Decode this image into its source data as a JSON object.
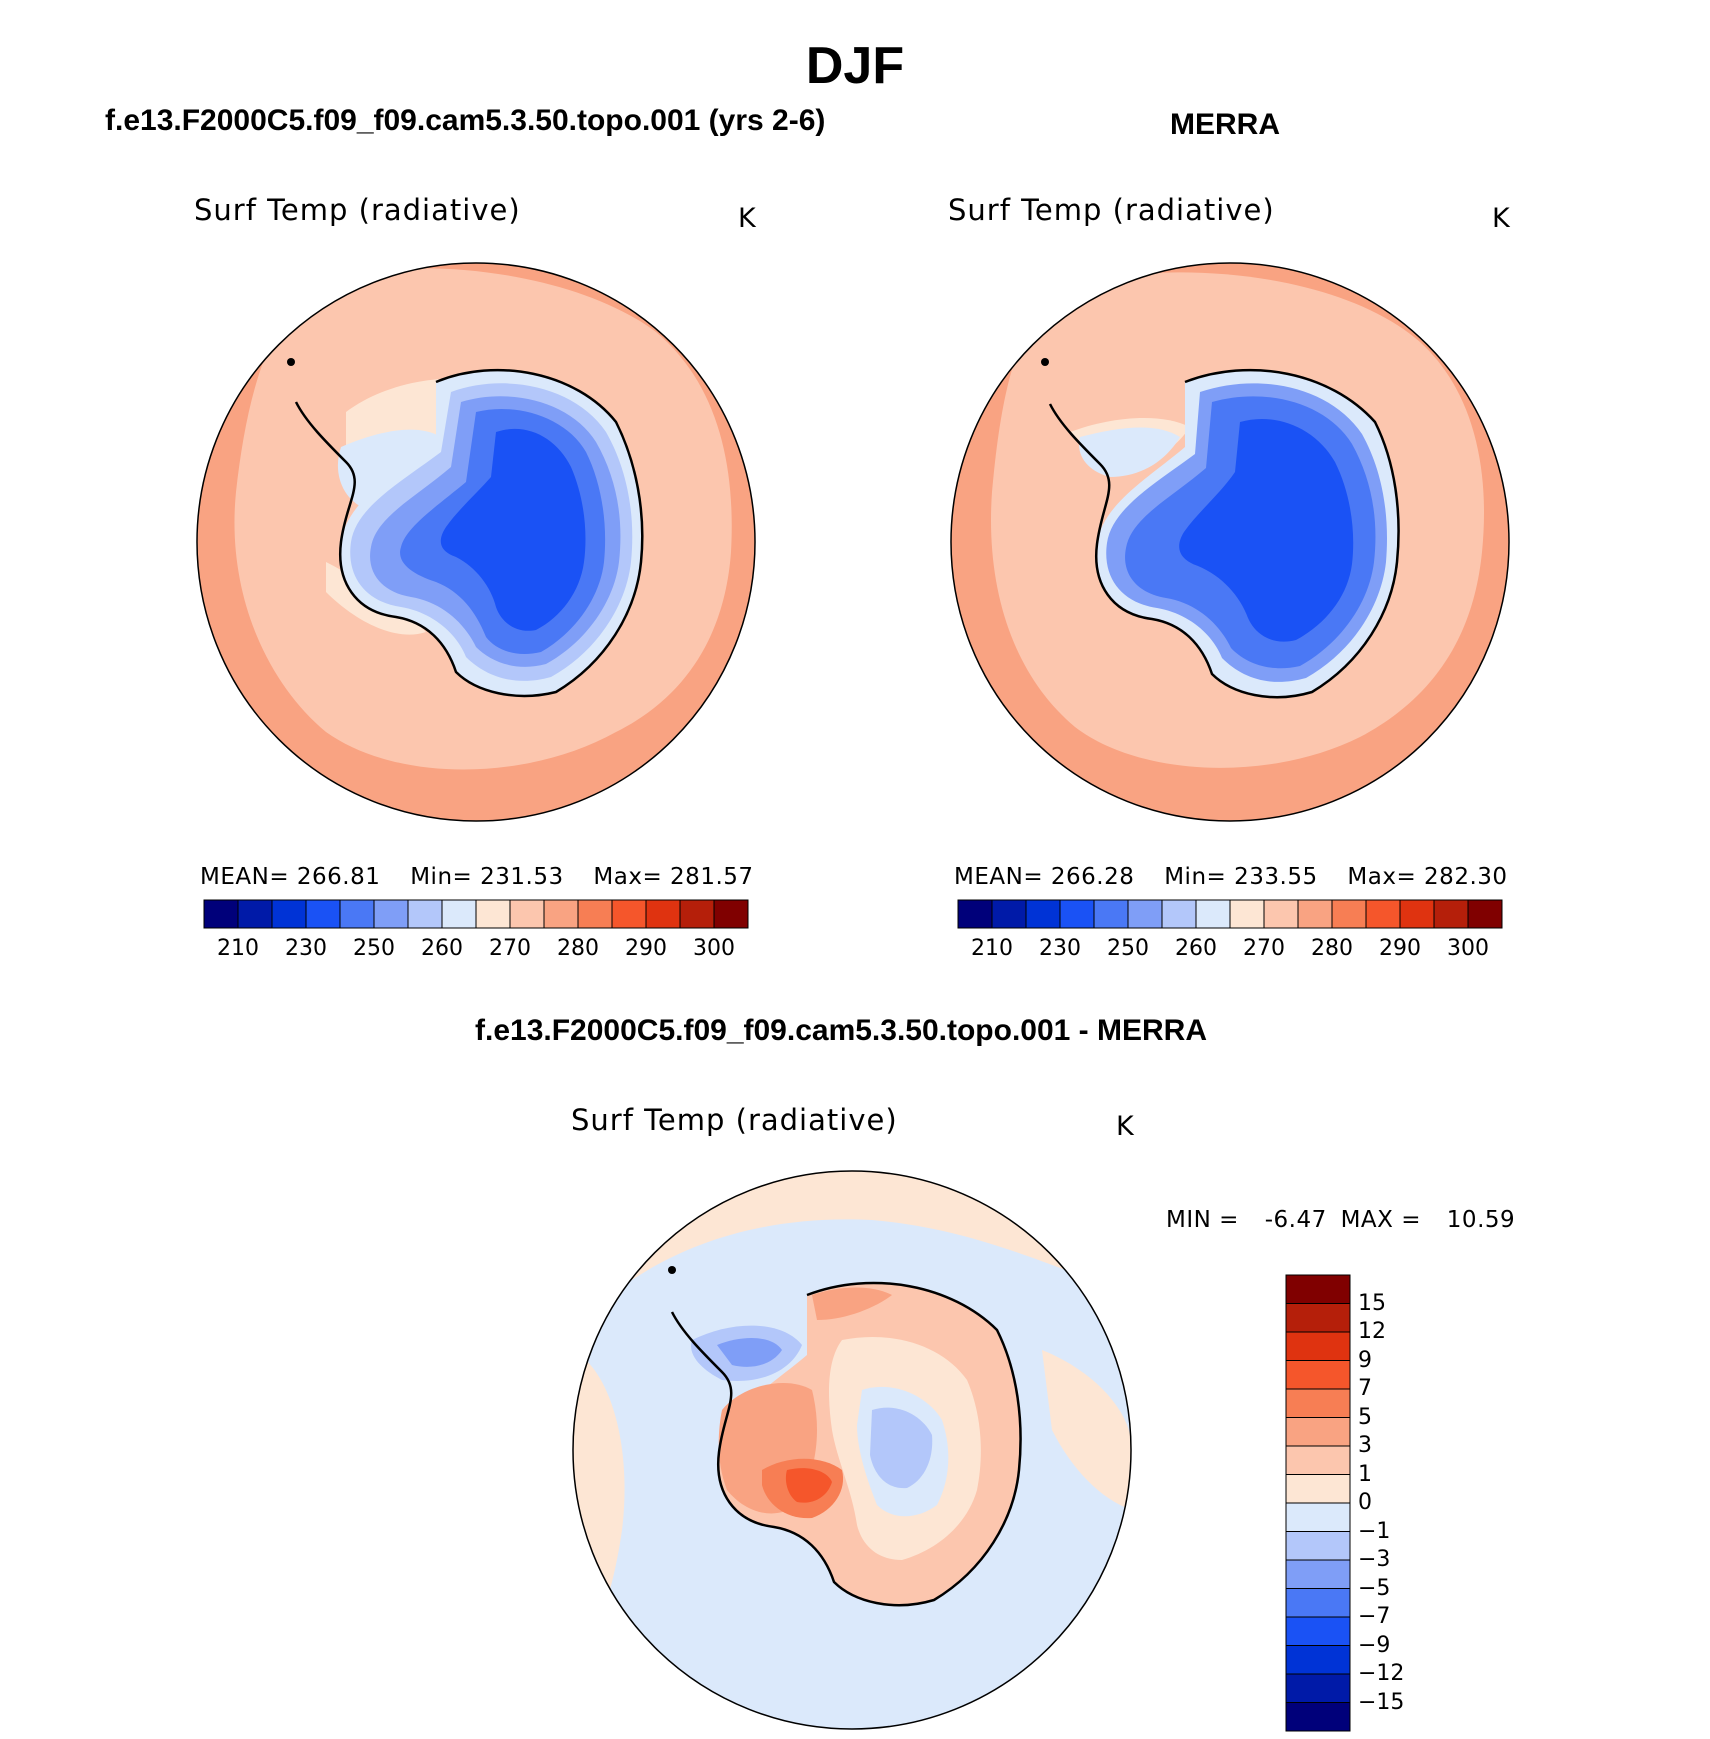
{
  "figure": {
    "title": "DJF"
  },
  "panels": [
    {
      "title": "f.e13.F2000C5.f09_f09.cam5.3.50.topo.001 (yrs 2-6)",
      "field": "Surf Temp (radiative)",
      "units": "K",
      "stats": {
        "mean_label": "MEAN=",
        "mean": "266.81",
        "min_label": "Min=",
        "min": "231.53",
        "max_label": "Max=",
        "max": "281.57"
      }
    },
    {
      "title": "MERRA",
      "field": "Surf Temp (radiative)",
      "units": "K",
      "stats": {
        "mean_label": "MEAN=",
        "mean": "266.28",
        "min_label": "Min=",
        "min": "233.55",
        "max_label": "Max=",
        "max": "282.30"
      }
    },
    {
      "title": "f.e13.F2000C5.f09_f09.cam5.3.50.topo.001 - MERRA",
      "field": "Surf Temp (radiative)",
      "units": "K",
      "stats": {
        "min_label": "MIN =",
        "min": "-6.47",
        "max_label": "MAX =",
        "max": "10.59"
      }
    }
  ],
  "colorbars": {
    "absolute": {
      "colors": [
        "#00007a",
        "#001aa8",
        "#0033d6",
        "#1a52f5",
        "#4a78f5",
        "#7f9ef7",
        "#b3c7fa",
        "#dbe9fb",
        "#fde6d4",
        "#fcc6ae",
        "#f9a382",
        "#f77e54",
        "#f5562b",
        "#df3310",
        "#b51f0a",
        "#800000"
      ],
      "tick_labels": [
        "210",
        "230",
        "250",
        "260",
        "270",
        "280",
        "290",
        "300"
      ]
    },
    "difference": {
      "colors_top_to_bottom": [
        "#800000",
        "#b51f0a",
        "#df3310",
        "#f5562b",
        "#f77e54",
        "#f9a382",
        "#fcc6ae",
        "#fde6d4",
        "#dbe9fb",
        "#b3c7fa",
        "#7f9ef7",
        "#4a78f5",
        "#1a52f5",
        "#0033d6",
        "#001aa8",
        "#00007a"
      ],
      "tick_labels": [
        "15",
        "12",
        "9",
        "7",
        "5",
        "3",
        "1",
        "0",
        "−1",
        "−3",
        "−5",
        "−7",
        "−9",
        "−12",
        "−15"
      ]
    }
  },
  "map_colors": {
    "ocean_warm": "#f9a382",
    "ocean_mid": "#fcc6ae",
    "ocean_cool": "#fde6d4",
    "ice_edge": "#dbe9fb",
    "ice_1": "#b3c7fa",
    "ice_2": "#7f9ef7",
    "ice_3": "#4a78f5",
    "ice_4": "#1a52f5",
    "diff_ocean": "#dbe9fb",
    "diff_pos1": "#fde6d4",
    "diff_pos2": "#fcc6ae",
    "diff_pos3": "#f9a382",
    "diff_pos4": "#f77e54",
    "diff_pos5": "#f5562b",
    "diff_neg1": "#b3c7fa",
    "diff_neg2": "#7f9ef7",
    "diff_neg3": "#4a78f5"
  }
}
